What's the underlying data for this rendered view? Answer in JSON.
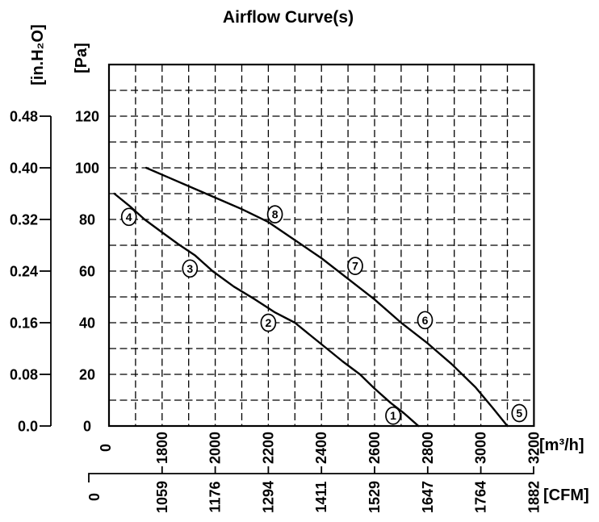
{
  "chart_data": {
    "type": "line",
    "title": "Airflow Curve(s)",
    "grid": "dashed",
    "x_axis": {
      "label": "[m³/h]",
      "ticks": [
        "0",
        "1800",
        "2000",
        "2200",
        "2400",
        "2600",
        "2800",
        "3000",
        "3200"
      ],
      "axis_break": "between 0 and 1800",
      "secondary_label": "[CFM]",
      "secondary_ticks": [
        "0",
        "1059",
        "1176",
        "1294",
        "1411",
        "1529",
        "1647",
        "1764",
        "1882"
      ]
    },
    "y_axis": {
      "label": "[Pa]",
      "ticks": [
        "0",
        "20",
        "40",
        "60",
        "80",
        "100",
        "120"
      ],
      "range_pa": [
        0,
        140
      ],
      "secondary_label": "[in.H₂O]",
      "secondary_ticks": [
        "0.0",
        "0.08",
        "0.16",
        "0.24",
        "0.32",
        "0.40",
        "0.48"
      ]
    },
    "series": [
      {
        "name": "fan-curve-1-2-3-4",
        "markers": [
          "1",
          "2",
          "3",
          "4"
        ],
        "points_m3h_pa": [
          [
            1620,
            90
          ],
          [
            1680,
            85
          ],
          [
            1734,
            80
          ],
          [
            1800,
            75
          ],
          [
            1860,
            70.5
          ],
          [
            1925,
            66
          ],
          [
            1990,
            60
          ],
          [
            2070,
            54
          ],
          [
            2150,
            49
          ],
          [
            2225,
            44
          ],
          [
            2300,
            40
          ],
          [
            2360,
            35
          ],
          [
            2420,
            30
          ],
          [
            2480,
            25
          ],
          [
            2545,
            20
          ],
          [
            2600,
            14.5
          ],
          [
            2660,
            9
          ],
          [
            2710,
            5
          ],
          [
            2765,
            0
          ]
        ]
      },
      {
        "name": "fan-curve-5-6-7-8",
        "markers": [
          "5",
          "6",
          "7",
          "8"
        ],
        "points_m3h_pa": [
          [
            1740,
            100
          ],
          [
            1830,
            96
          ],
          [
            1920,
            92
          ],
          [
            2010,
            88
          ],
          [
            2100,
            84
          ],
          [
            2200,
            79
          ],
          [
            2300,
            72
          ],
          [
            2400,
            65
          ],
          [
            2500,
            57
          ],
          [
            2600,
            49
          ],
          [
            2700,
            40
          ],
          [
            2800,
            32
          ],
          [
            2890,
            24
          ],
          [
            2980,
            15
          ],
          [
            3045,
            7
          ],
          [
            3100,
            0
          ]
        ]
      }
    ],
    "marker_labels": [
      {
        "label": "1",
        "m3h": 2670,
        "pa": 4
      },
      {
        "label": "2",
        "m3h": 2200,
        "pa": 40
      },
      {
        "label": "3",
        "m3h": 1905,
        "pa": 61
      },
      {
        "label": "4",
        "m3h": 1675,
        "pa": 81
      },
      {
        "label": "5",
        "m3h": 3145,
        "pa": 5
      },
      {
        "label": "6",
        "m3h": 2790,
        "pa": 41
      },
      {
        "label": "7",
        "m3h": 2527,
        "pa": 62
      },
      {
        "label": "8",
        "m3h": 2225,
        "pa": 82
      }
    ]
  }
}
